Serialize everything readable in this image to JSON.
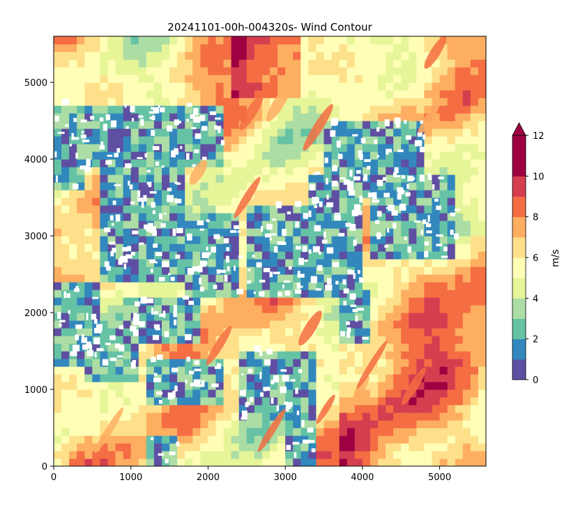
{
  "chart_data": {
    "type": "heatmap",
    "title": "20241101-00h-004320s- Wind Contour",
    "xlabel": "",
    "ylabel": "",
    "xlim": [
      0,
      5600
    ],
    "ylim": [
      0,
      5600
    ],
    "x_ticks": [
      0,
      1000,
      2000,
      3000,
      4000,
      5000
    ],
    "y_ticks": [
      0,
      1000,
      2000,
      3000,
      4000,
      5000
    ],
    "grid": false,
    "colorbar": {
      "label": "m/s",
      "levels": [
        0,
        1,
        2,
        3,
        4,
        5,
        6,
        7,
        8,
        9,
        10,
        11,
        12
      ],
      "tick_values": [
        0,
        2,
        4,
        6,
        8,
        10,
        12
      ],
      "extend": "max",
      "colors": [
        "#5e4fa2",
        "#3288bd",
        "#66c2a5",
        "#abdda4",
        "#e6f598",
        "#fefeb7",
        "#fee08b",
        "#fdae61",
        "#f46d43",
        "#d53e4f",
        "#9e0142",
        "#9e0142"
      ]
    },
    "field_description": "Wind speed contour: mostly 4-8 m/s background with diagonal streaks up to ~11 m/s; low-speed (0-3 m/s) regions with white building footprints in clusters on the upper-left, center and right-center."
  }
}
